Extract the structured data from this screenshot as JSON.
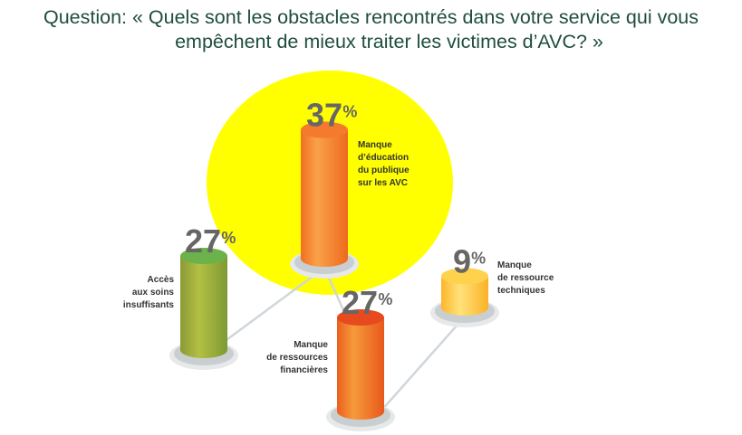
{
  "question": {
    "line1": "Question: « Quels sont les obstacles rencontrés dans votre service qui vous",
    "line2": "empêchent de mieux traiter les victimes d’AVC? »"
  },
  "chart_data": {
    "type": "bar",
    "title": "Question: « Quels sont les obstacles rencontrés dans votre service qui vous empêchent de mieux traiter les victimes d’AVC? »",
    "unit": "%",
    "categories": [
      "Manque d’éducation du publique sur les AVC",
      "Accès aux soins insuffisants",
      "Manque de ressources financières",
      "Manque de ressource techniques"
    ],
    "values": [
      37,
      27,
      27,
      9
    ],
    "bars": [
      {
        "value": 37,
        "value_label": "37",
        "label_lines": [
          "Manque",
          "d’éducation",
          "du publique",
          "sur les AVC"
        ],
        "color_top": "#f47a2e",
        "color_body": "#f26f21",
        "highlight": "#f9a14a"
      },
      {
        "value": 27,
        "value_label": "27",
        "label_lines": [
          "Accès",
          "aux soins",
          "insuffisants"
        ],
        "color_top": "#6cb24a",
        "color_body": "#8aa33a",
        "highlight": "#b3c043"
      },
      {
        "value": 27,
        "value_label": "27",
        "label_lines": [
          "Manque",
          "de ressources",
          "financières"
        ],
        "color_top": "#e64a1e",
        "color_body": "#f06a1c",
        "highlight": "#f59a3a"
      },
      {
        "value": 9,
        "value_label": "9",
        "label_lines": [
          "Manque",
          "de ressource",
          "techniques"
        ],
        "color_top": "#ffd24d",
        "color_body": "#fdbd2e",
        "highlight": "#ffe27a"
      }
    ],
    "highlight_circle_color": "#ffff00"
  }
}
